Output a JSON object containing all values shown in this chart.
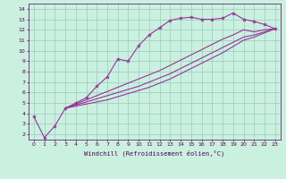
{
  "background_color": "#caf0e0",
  "grid_color": "#99ccbb",
  "line_color": "#993399",
  "xlabel": "Windchill (Refroidissement éolien,°C)",
  "xlim": [
    -0.5,
    23.5
  ],
  "ylim": [
    1.5,
    14.5
  ],
  "xticks": [
    0,
    1,
    2,
    3,
    4,
    5,
    6,
    7,
    8,
    9,
    10,
    11,
    12,
    13,
    14,
    15,
    16,
    17,
    18,
    19,
    20,
    21,
    22,
    23
  ],
  "yticks": [
    2,
    3,
    4,
    5,
    6,
    7,
    8,
    9,
    10,
    11,
    12,
    13,
    14
  ],
  "series_marked_x": [
    0,
    1,
    2,
    3,
    4,
    5,
    6,
    7,
    8,
    9,
    10,
    11,
    12,
    13,
    14,
    15,
    16,
    17,
    18,
    19,
    20,
    21,
    22,
    23
  ],
  "series_marked_y": [
    3.7,
    1.7,
    2.8,
    4.5,
    5.0,
    5.5,
    6.6,
    7.5,
    9.2,
    9.0,
    10.5,
    11.5,
    12.2,
    12.9,
    13.1,
    13.2,
    13.0,
    13.0,
    13.1,
    13.6,
    13.0,
    12.8,
    12.5,
    12.1
  ],
  "series2_x": [
    3,
    23
  ],
  "series2_y": [
    4.5,
    12.1
  ],
  "series3_x": [
    3,
    23
  ],
  "series3_y": [
    4.5,
    12.1
  ],
  "series4_x": [
    3,
    23
  ],
  "series4_y": [
    4.5,
    12.1
  ],
  "smooth2_x": [
    3,
    4,
    5,
    6,
    7,
    8,
    9,
    10,
    11,
    12,
    13,
    14,
    15,
    16,
    17,
    18,
    19,
    20,
    21,
    22,
    23
  ],
  "smooth2_y": [
    4.5,
    4.9,
    5.3,
    5.7,
    6.1,
    6.5,
    6.9,
    7.3,
    7.7,
    8.1,
    8.6,
    9.1,
    9.6,
    10.1,
    10.6,
    11.1,
    11.5,
    12.0,
    11.8,
    12.0,
    12.1
  ],
  "smooth3_x": [
    3,
    4,
    5,
    6,
    7,
    8,
    9,
    10,
    11,
    12,
    13,
    14,
    15,
    16,
    17,
    18,
    19,
    20,
    21,
    22,
    23
  ],
  "smooth3_y": [
    4.5,
    4.8,
    5.1,
    5.4,
    5.7,
    6.0,
    6.3,
    6.6,
    7.0,
    7.4,
    7.8,
    8.3,
    8.8,
    9.3,
    9.8,
    10.3,
    10.8,
    11.3,
    11.5,
    11.8,
    12.1
  ],
  "smooth4_x": [
    3,
    4,
    5,
    6,
    7,
    8,
    9,
    10,
    11,
    12,
    13,
    14,
    15,
    16,
    17,
    18,
    19,
    20,
    21,
    22,
    23
  ],
  "smooth4_y": [
    4.5,
    4.7,
    4.9,
    5.1,
    5.3,
    5.6,
    5.9,
    6.2,
    6.5,
    6.9,
    7.3,
    7.8,
    8.3,
    8.8,
    9.3,
    9.8,
    10.4,
    11.0,
    11.3,
    11.7,
    12.1
  ]
}
